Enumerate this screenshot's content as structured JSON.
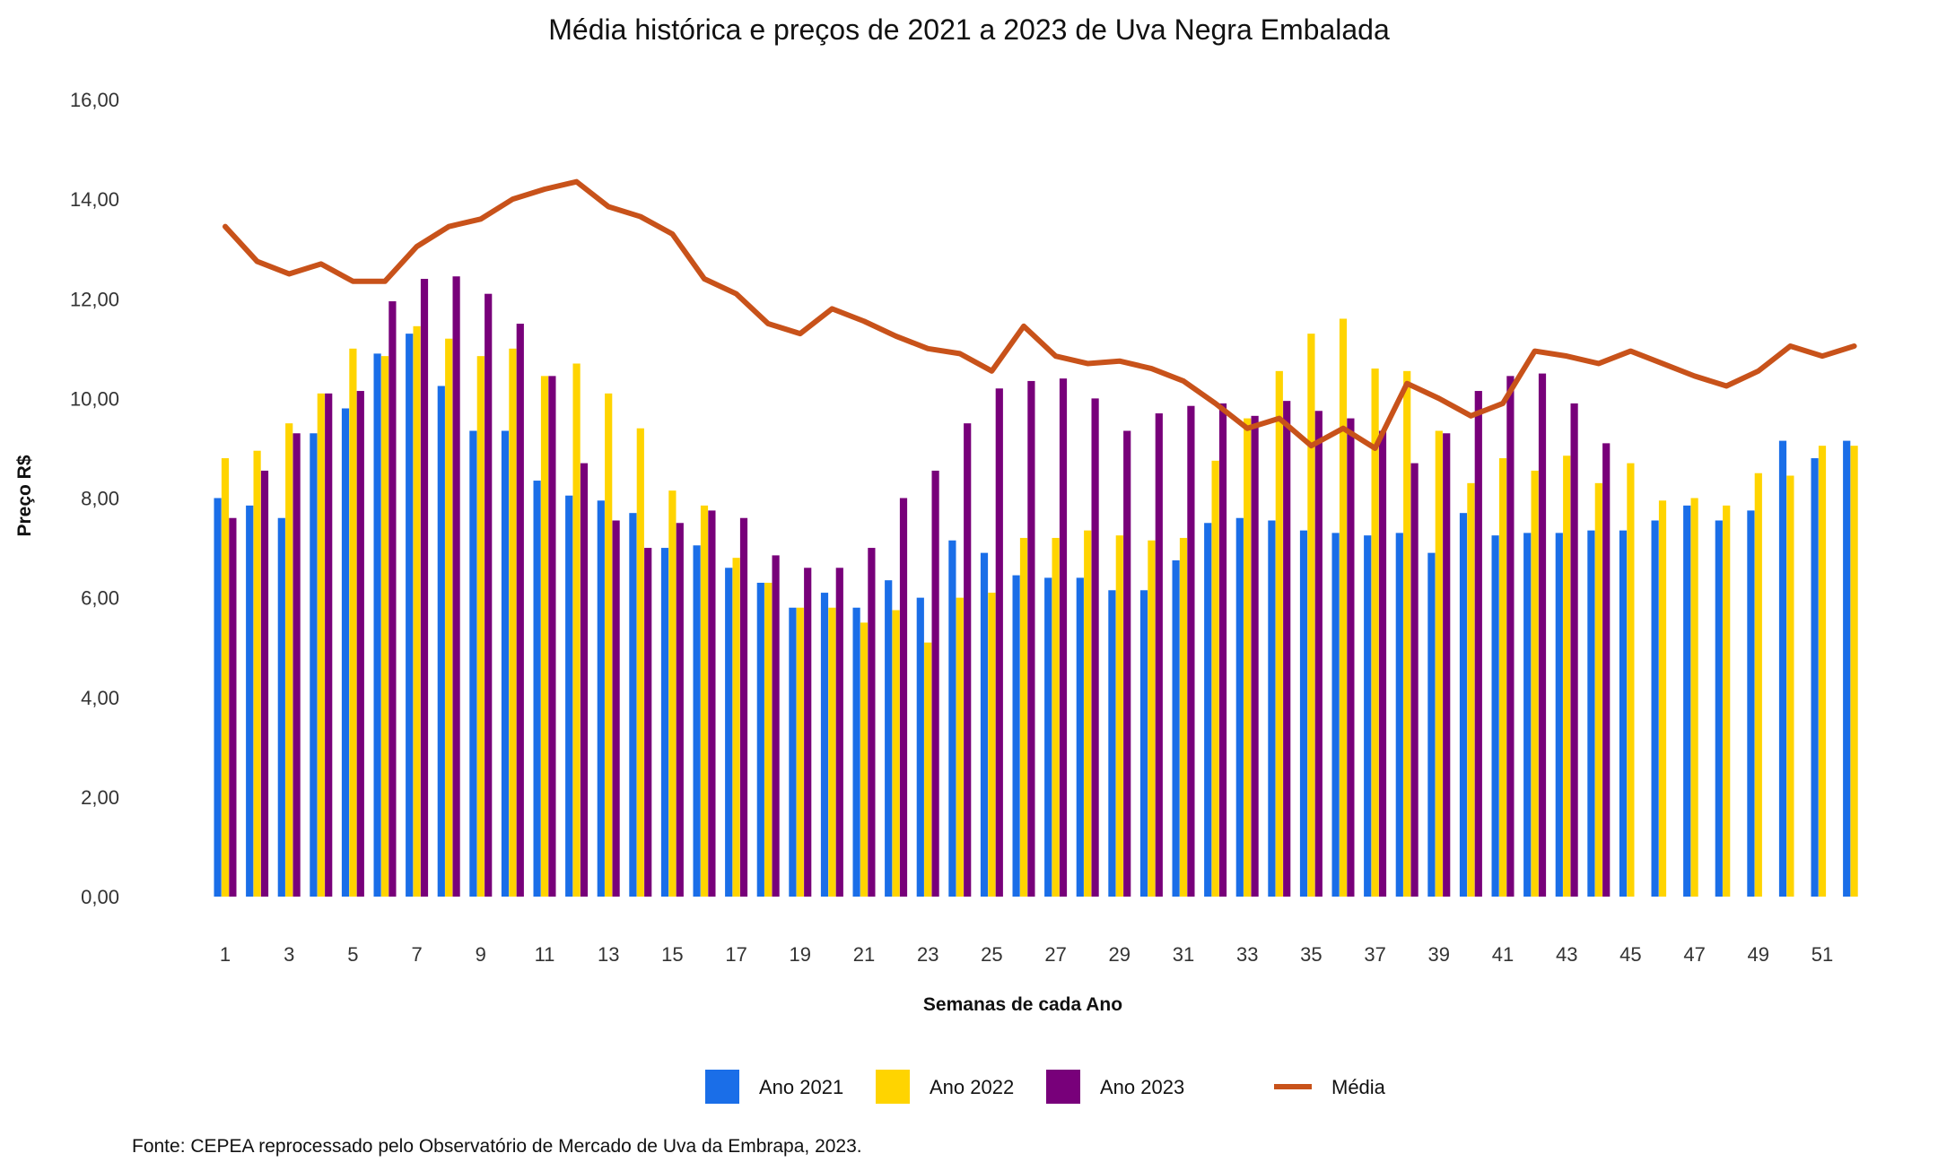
{
  "chart_data": {
    "type": "bar",
    "title": "Média histórica e preços de 2021 a 2023 de Uva Negra Embalada",
    "xlabel": "Semanas de cada Ano",
    "ylabel": "Preço R$",
    "ylim": [
      0,
      16
    ],
    "yticks": [
      "0,00",
      "2,00",
      "4,00",
      "6,00",
      "8,00",
      "10,00",
      "12,00",
      "14,00",
      "16,00"
    ],
    "xtick_labels": [
      "1",
      "3",
      "5",
      "7",
      "9",
      "11",
      "13",
      "15",
      "17",
      "19",
      "21",
      "23",
      "25",
      "27",
      "29",
      "31",
      "33",
      "35",
      "37",
      "39",
      "41",
      "43",
      "45",
      "47",
      "49",
      "51"
    ],
    "categories": [
      1,
      2,
      3,
      4,
      5,
      6,
      7,
      8,
      9,
      10,
      11,
      12,
      13,
      14,
      15,
      16,
      17,
      18,
      19,
      20,
      21,
      22,
      23,
      24,
      25,
      26,
      27,
      28,
      29,
      30,
      31,
      32,
      33,
      34,
      35,
      36,
      37,
      38,
      39,
      40,
      41,
      42,
      43,
      44,
      45,
      46,
      47,
      48,
      49,
      50,
      51,
      52
    ],
    "grid": false,
    "legend_position": "bottom",
    "series": [
      {
        "name": "Ano 2021",
        "kind": "bar",
        "color": "#1a6ee8",
        "values": [
          8.0,
          7.85,
          7.6,
          9.3,
          9.8,
          10.9,
          11.3,
          10.25,
          9.35,
          9.35,
          8.35,
          8.05,
          7.95,
          7.7,
          7.0,
          7.05,
          6.6,
          6.3,
          5.8,
          6.1,
          5.8,
          6.35,
          6.0,
          7.15,
          6.9,
          6.45,
          6.4,
          6.4,
          6.15,
          6.15,
          6.75,
          7.5,
          7.6,
          7.55,
          7.35,
          7.3,
          7.25,
          7.3,
          6.9,
          7.7,
          7.25,
          7.3,
          7.3,
          7.35,
          7.35,
          7.55,
          7.85,
          7.55,
          7.75,
          9.15,
          8.8,
          9.15
        ]
      },
      {
        "name": "Ano 2022",
        "kind": "bar",
        "color": "#ffd400",
        "values": [
          8.8,
          8.95,
          9.5,
          10.1,
          11.0,
          10.85,
          11.45,
          11.2,
          10.85,
          11.0,
          10.45,
          10.7,
          10.1,
          9.4,
          8.15,
          7.85,
          6.8,
          6.3,
          5.8,
          5.8,
          5.5,
          5.75,
          5.1,
          6.0,
          6.1,
          7.2,
          7.2,
          7.35,
          7.25,
          7.15,
          7.2,
          8.75,
          9.6,
          10.55,
          11.3,
          11.6,
          10.6,
          10.55,
          9.35,
          8.3,
          8.8,
          8.55,
          8.85,
          8.3,
          8.7,
          7.95,
          8.0,
          7.85,
          8.5,
          8.45,
          9.05,
          9.05
        ]
      },
      {
        "name": "Ano 2023",
        "kind": "bar",
        "color": "#78007a",
        "values": [
          7.6,
          8.55,
          9.3,
          10.1,
          10.15,
          11.95,
          12.4,
          12.45,
          12.1,
          11.5,
          10.45,
          8.7,
          7.55,
          7.0,
          7.5,
          7.75,
          7.6,
          6.85,
          6.6,
          6.6,
          7.0,
          8.0,
          8.55,
          9.5,
          10.2,
          10.35,
          10.4,
          10.0,
          9.35,
          9.7,
          9.85,
          9.9,
          9.65,
          9.95,
          9.75,
          9.6,
          9.35,
          8.7,
          9.3,
          10.15,
          10.45,
          10.5,
          9.9,
          9.1,
          null,
          null,
          null,
          null,
          null,
          null,
          null,
          null
        ]
      },
      {
        "name": "Média",
        "kind": "line",
        "color": "#c8521a",
        "values": [
          13.45,
          12.75,
          12.5,
          12.7,
          12.35,
          12.35,
          13.05,
          13.45,
          13.6,
          14.0,
          14.2,
          14.35,
          13.85,
          13.65,
          13.3,
          12.4,
          12.1,
          11.5,
          11.3,
          11.8,
          11.55,
          11.25,
          11.0,
          10.9,
          10.55,
          11.45,
          10.85,
          10.7,
          10.75,
          10.6,
          10.35,
          9.9,
          9.4,
          9.6,
          9.05,
          9.4,
          9.0,
          10.3,
          10.0,
          9.65,
          9.9,
          10.95,
          10.85,
          10.7,
          10.95,
          10.7,
          10.45,
          10.25,
          10.55,
          11.05,
          10.85,
          11.05
        ]
      }
    ]
  },
  "footer": "Fonte: CEPEA reprocessado pelo Observatório de Mercado de Uva da Embrapa, 2023."
}
